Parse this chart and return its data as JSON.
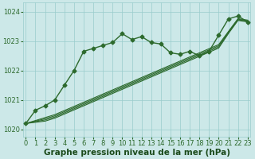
{
  "bg_color": "#cce8e8",
  "grid_color": "#99cccc",
  "line_color": "#2d6a2d",
  "xlabel": "Graphe pression niveau de la mer (hPa)",
  "xlabel_color": "#1a4a1a",
  "ylim": [
    1019.75,
    1024.3
  ],
  "xlim": [
    -0.3,
    23.3
  ],
  "yticks": [
    1020,
    1021,
    1022,
    1023,
    1024
  ],
  "xticks": [
    0,
    1,
    2,
    3,
    4,
    5,
    6,
    7,
    8,
    9,
    10,
    11,
    12,
    13,
    14,
    15,
    16,
    17,
    18,
    19,
    20,
    21,
    22,
    23
  ],
  "main_line": [
    1020.2,
    1020.65,
    1020.8,
    1021.0,
    1021.5,
    1022.0,
    1022.65,
    1022.75,
    1022.85,
    1022.95,
    1023.25,
    1023.05,
    1023.15,
    1022.95,
    1022.9,
    1022.6,
    1022.55,
    1022.65,
    1022.5,
    1022.65,
    1023.2,
    1023.75,
    1023.85,
    1023.65
  ],
  "trend_lines": [
    [
      1020.2,
      1020.24,
      1020.28,
      1020.38,
      1020.52,
      1020.66,
      1020.8,
      1020.94,
      1021.08,
      1021.22,
      1021.36,
      1021.5,
      1021.64,
      1021.78,
      1021.92,
      1022.06,
      1022.2,
      1022.34,
      1022.48,
      1022.62,
      1022.76,
      1023.25,
      1023.7,
      1023.65
    ],
    [
      1020.2,
      1020.26,
      1020.32,
      1020.42,
      1020.56,
      1020.7,
      1020.84,
      1020.98,
      1021.12,
      1021.26,
      1021.4,
      1021.54,
      1021.68,
      1021.82,
      1021.96,
      1022.1,
      1022.24,
      1022.38,
      1022.52,
      1022.66,
      1022.8,
      1023.28,
      1023.72,
      1023.67
    ],
    [
      1020.2,
      1020.28,
      1020.36,
      1020.46,
      1020.6,
      1020.74,
      1020.88,
      1021.02,
      1021.16,
      1021.3,
      1021.44,
      1021.58,
      1021.72,
      1021.86,
      1022.0,
      1022.14,
      1022.28,
      1022.42,
      1022.56,
      1022.7,
      1022.84,
      1023.3,
      1023.74,
      1023.69
    ],
    [
      1020.2,
      1020.3,
      1020.4,
      1020.5,
      1020.64,
      1020.78,
      1020.92,
      1021.06,
      1021.2,
      1021.34,
      1021.48,
      1021.62,
      1021.76,
      1021.9,
      1022.04,
      1022.18,
      1022.32,
      1022.46,
      1022.6,
      1022.74,
      1022.88,
      1023.32,
      1023.76,
      1023.71
    ]
  ],
  "marker": "D",
  "markersize": 2.5,
  "linewidth": 1.0,
  "trend_linewidth": 0.8,
  "tick_fontsize": 6.0,
  "xlabel_fontsize": 7.5
}
